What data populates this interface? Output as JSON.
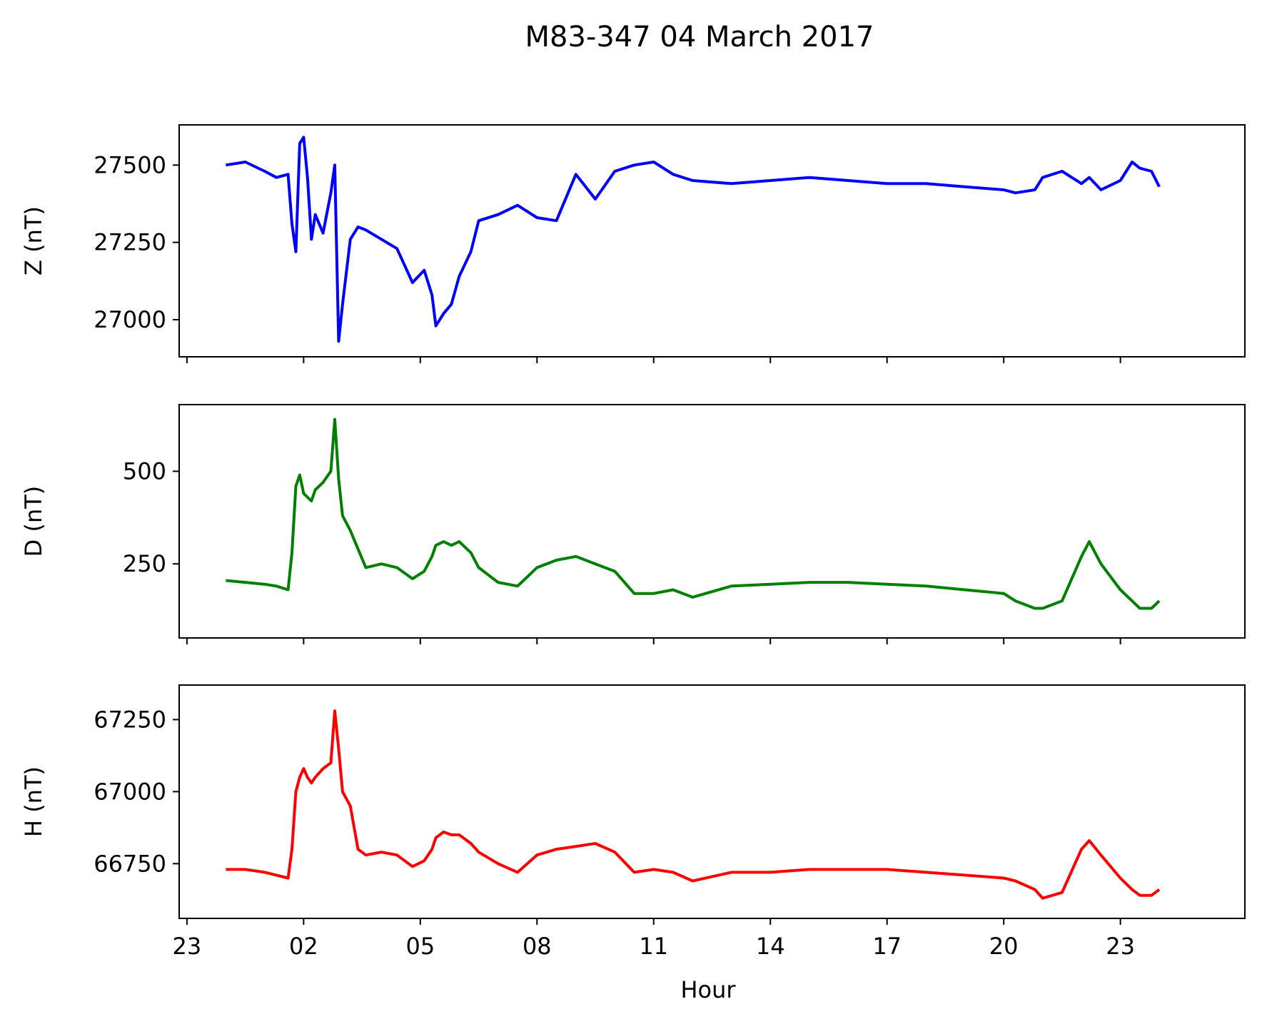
{
  "chart_data": {
    "title": "M83-347 04 March 2017",
    "type": "line",
    "shared_x": {
      "label": "Hour",
      "range_hours": [
        -1.2,
        26.2
      ],
      "ticks": [
        {
          "hour": -1,
          "label": "23"
        },
        {
          "hour": 2,
          "label": "02"
        },
        {
          "hour": 5,
          "label": "05"
        },
        {
          "hour": 8,
          "label": "08"
        },
        {
          "hour": 11,
          "label": "11"
        },
        {
          "hour": 14,
          "label": "14"
        },
        {
          "hour": 17,
          "label": "17"
        },
        {
          "hour": 20,
          "label": "20"
        },
        {
          "hour": 23,
          "label": "23"
        }
      ]
    },
    "panels": [
      {
        "ylabel": "Z (nT)",
        "color": "#0000ff",
        "ylim": [
          26880,
          27630
        ],
        "yticks": [
          {
            "value": 27000,
            "label": "27000"
          },
          {
            "value": 27250,
            "label": "27250"
          },
          {
            "value": 27500,
            "label": "27500"
          }
        ],
        "x": [
          0.0,
          0.5,
          1.0,
          1.3,
          1.6,
          1.7,
          1.8,
          1.9,
          2.0,
          2.1,
          2.2,
          2.3,
          2.5,
          2.7,
          2.8,
          2.9,
          3.0,
          3.2,
          3.4,
          3.6,
          4.0,
          4.4,
          4.8,
          5.1,
          5.3,
          5.4,
          5.6,
          5.8,
          6.0,
          6.3,
          6.5,
          7.0,
          7.5,
          8.0,
          8.5,
          9.0,
          9.5,
          10.0,
          10.5,
          11.0,
          11.5,
          12.0,
          13.0,
          14.0,
          15.0,
          16.0,
          17.0,
          18.0,
          19.0,
          20.0,
          20.3,
          20.8,
          21.0,
          21.5,
          22.0,
          22.2,
          22.5,
          23.0,
          23.3,
          23.5,
          23.8,
          24.0
        ],
        "y": [
          27500,
          27510,
          27480,
          27460,
          27470,
          27310,
          27220,
          27570,
          27590,
          27460,
          27260,
          27340,
          27280,
          27410,
          27500,
          26930,
          27050,
          27260,
          27300,
          27290,
          27260,
          27230,
          27120,
          27160,
          27080,
          26980,
          27020,
          27050,
          27140,
          27220,
          27320,
          27340,
          27370,
          27330,
          27320,
          27470,
          27390,
          27480,
          27500,
          27510,
          27470,
          27450,
          27440,
          27450,
          27460,
          27450,
          27440,
          27440,
          27430,
          27420,
          27410,
          27420,
          27460,
          27480,
          27440,
          27460,
          27420,
          27450,
          27510,
          27490,
          27480,
          27430
        ]
      },
      {
        "ylabel": "D (nT)",
        "color": "#008000",
        "ylim": [
          50,
          680
        ],
        "yticks": [
          {
            "value": 250,
            "label": "250"
          },
          {
            "value": 500,
            "label": "500"
          }
        ],
        "x": [
          0.0,
          0.5,
          1.0,
          1.3,
          1.6,
          1.7,
          1.8,
          1.9,
          2.0,
          2.1,
          2.2,
          2.3,
          2.5,
          2.7,
          2.8,
          2.9,
          3.0,
          3.2,
          3.4,
          3.6,
          4.0,
          4.4,
          4.8,
          5.1,
          5.3,
          5.4,
          5.6,
          5.8,
          6.0,
          6.3,
          6.5,
          7.0,
          7.5,
          8.0,
          8.5,
          9.0,
          9.5,
          10.0,
          10.5,
          11.0,
          11.5,
          12.0,
          13.0,
          14.0,
          15.0,
          16.0,
          17.0,
          18.0,
          19.0,
          20.0,
          20.3,
          20.8,
          21.0,
          21.5,
          22.0,
          22.2,
          22.5,
          23.0,
          23.3,
          23.5,
          23.8,
          24.0
        ],
        "y": [
          205,
          200,
          195,
          190,
          180,
          280,
          460,
          490,
          440,
          430,
          420,
          450,
          470,
          500,
          640,
          480,
          380,
          340,
          290,
          240,
          250,
          240,
          210,
          230,
          270,
          300,
          310,
          300,
          310,
          280,
          240,
          200,
          190,
          240,
          260,
          270,
          250,
          230,
          170,
          170,
          180,
          160,
          190,
          195,
          200,
          200,
          195,
          190,
          180,
          170,
          150,
          130,
          130,
          150,
          270,
          310,
          250,
          180,
          150,
          130,
          130,
          150
        ]
      },
      {
        "ylabel": "H (nT)",
        "color": "#ff0000",
        "ylim": [
          66560,
          67370
        ],
        "yticks": [
          {
            "value": 66750,
            "label": "66750"
          },
          {
            "value": 67000,
            "label": "67000"
          },
          {
            "value": 67250,
            "label": "67250"
          }
        ],
        "x": [
          0.0,
          0.5,
          1.0,
          1.3,
          1.6,
          1.7,
          1.8,
          1.9,
          2.0,
          2.1,
          2.2,
          2.3,
          2.5,
          2.7,
          2.8,
          2.9,
          3.0,
          3.2,
          3.4,
          3.6,
          4.0,
          4.4,
          4.8,
          5.1,
          5.3,
          5.4,
          5.6,
          5.8,
          6.0,
          6.3,
          6.5,
          7.0,
          7.5,
          8.0,
          8.5,
          9.0,
          9.5,
          10.0,
          10.5,
          11.0,
          11.5,
          12.0,
          13.0,
          14.0,
          15.0,
          16.0,
          17.0,
          18.0,
          19.0,
          20.0,
          20.3,
          20.8,
          21.0,
          21.5,
          22.0,
          22.2,
          22.5,
          23.0,
          23.3,
          23.5,
          23.8,
          24.0
        ],
        "y": [
          66730,
          66730,
          66720,
          66710,
          66700,
          66800,
          67000,
          67050,
          67080,
          67050,
          67030,
          67050,
          67080,
          67100,
          67280,
          67150,
          67000,
          66950,
          66800,
          66780,
          66790,
          66780,
          66740,
          66760,
          66800,
          66840,
          66860,
          66850,
          66850,
          66820,
          66790,
          66750,
          66720,
          66780,
          66800,
          66810,
          66820,
          66790,
          66720,
          66730,
          66720,
          66690,
          66720,
          66720,
          66730,
          66730,
          66730,
          66720,
          66710,
          66700,
          66690,
          66660,
          66630,
          66650,
          66800,
          66830,
          66780,
          66700,
          66660,
          66640,
          66640,
          66660
        ]
      }
    ]
  }
}
